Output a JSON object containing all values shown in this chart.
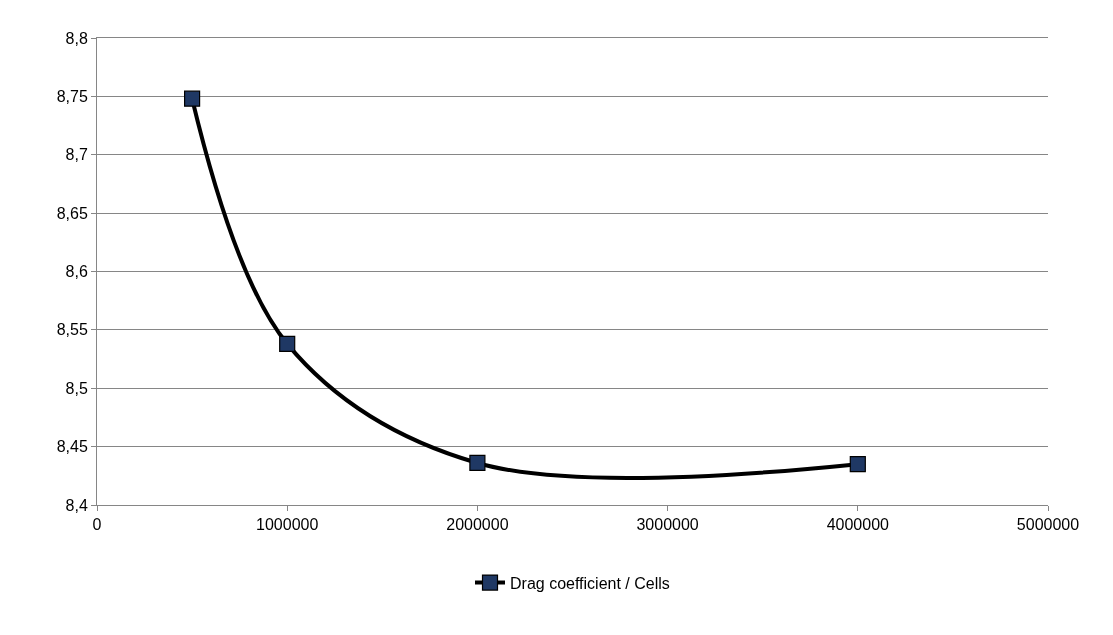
{
  "chart_data": {
    "type": "line",
    "x": [
      500000,
      1000000,
      2000000,
      4000000
    ],
    "series": [
      {
        "name": "Drag coefficient / Cells",
        "color": "#000000",
        "values": [
          8.748,
          8.538,
          8.436,
          8.435
        ]
      }
    ],
    "marker": "square",
    "xlim": [
      0,
      5000000
    ],
    "xticks": [
      0,
      1000000,
      2000000,
      3000000,
      4000000,
      5000000
    ],
    "ylim": [
      8.4,
      8.8
    ],
    "yticks": [
      {
        "value": 8.4,
        "label": "8,4"
      },
      {
        "value": 8.45,
        "label": "8,45"
      },
      {
        "value": 8.5,
        "label": "8,5"
      },
      {
        "value": 8.55,
        "label": "8,55"
      },
      {
        "value": 8.6,
        "label": "8,6"
      },
      {
        "value": 8.65,
        "label": "8,65"
      },
      {
        "value": 8.7,
        "label": "8,7"
      },
      {
        "value": 8.75,
        "label": "8,75"
      },
      {
        "value": 8.8,
        "label": "8,8"
      }
    ],
    "grid": "y",
    "legend": "bottom"
  }
}
